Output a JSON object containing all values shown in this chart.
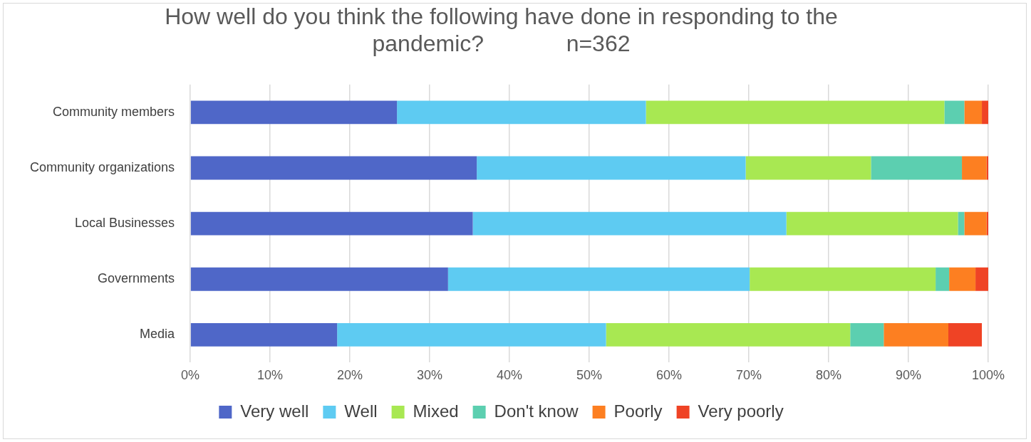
{
  "chart_data": {
    "type": "bar",
    "orientation": "horizontal",
    "stacked": true,
    "title": "How well do you think the following have done in responding to the pandemic?             n=362",
    "categories": [
      "Community members",
      "Community organizations",
      "Local Businesses",
      "Governments",
      "Media"
    ],
    "series": [
      {
        "name": "Very well",
        "color": "#4f67c8",
        "values": [
          25.9,
          35.9,
          35.4,
          32.3,
          18.4
        ]
      },
      {
        "name": "Well",
        "color": "#5ecbf2",
        "values": [
          31.2,
          33.7,
          39.3,
          37.8,
          33.7
        ]
      },
      {
        "name": "Mixed",
        "color": "#a8e852",
        "values": [
          37.4,
          15.7,
          21.5,
          23.3,
          30.6
        ]
      },
      {
        "name": "Don't know",
        "color": "#5ccfb0",
        "values": [
          2.5,
          11.4,
          0.8,
          1.7,
          4.2
        ]
      },
      {
        "name": "Poorly",
        "color": "#fd7f21",
        "values": [
          2.2,
          3.1,
          2.8,
          3.3,
          8.1
        ]
      },
      {
        "name": "Very poorly",
        "color": "#ef4325",
        "values": [
          0.8,
          0.2,
          0.2,
          1.6,
          4.2
        ]
      }
    ],
    "xlim": [
      0,
      100
    ],
    "xticks": [
      {
        "value": 0,
        "label": "0%"
      },
      {
        "value": 10,
        "label": "10%"
      },
      {
        "value": 20,
        "label": "20%"
      },
      {
        "value": 30,
        "label": "30%"
      },
      {
        "value": 40,
        "label": "40%"
      },
      {
        "value": 50,
        "label": "50%"
      },
      {
        "value": 60,
        "label": "60%"
      },
      {
        "value": 70,
        "label": "70%"
      },
      {
        "value": 80,
        "label": "80%"
      },
      {
        "value": 90,
        "label": "90%"
      },
      {
        "value": 100,
        "label": "100%"
      }
    ],
    "grid": "x",
    "legend": "bottom"
  }
}
